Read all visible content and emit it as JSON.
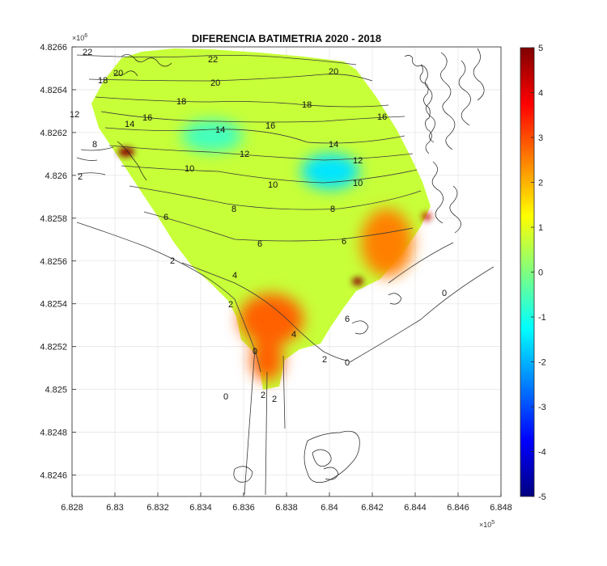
{
  "chart_data": {
    "type": "heatmap",
    "title": "DIFERENCIA BATIMETRIA 2020 - 2018",
    "xlabel": "",
    "ylabel": "",
    "xlim": [
      6.828,
      6.848
    ],
    "ylim": [
      4.8245,
      4.8266
    ],
    "x_ticks": [
      "6.828",
      "6.83",
      "6.832",
      "6.834",
      "6.836",
      "6.838",
      "6.84",
      "6.842",
      "6.844",
      "6.846",
      "6.848"
    ],
    "y_ticks": [
      "4.8246",
      "4.8248",
      "4.825",
      "4.8252",
      "4.8254",
      "4.8256",
      "4.8258",
      "4.826",
      "4.8262",
      "4.8264",
      "4.8266"
    ],
    "x_multiplier": {
      "base": "×10",
      "exp": "5"
    },
    "y_multiplier": {
      "base": "×10",
      "exp": "6"
    },
    "grid": true,
    "colorbar": {
      "min": -5,
      "max": 5,
      "colormap": "jet",
      "ticks": [
        "5",
        "4",
        "3",
        "2",
        "1",
        "0",
        "-1",
        "-2",
        "-3",
        "-4",
        "-5"
      ]
    },
    "contour_labels": [
      "22",
      "20",
      "18",
      "16",
      "14",
      "12",
      "10",
      "8",
      "6",
      "4",
      "2",
      "0"
    ],
    "regions": [
      {
        "name": "general",
        "value": 0.7
      },
      {
        "name": "southwest-shoal",
        "value": 2.8
      },
      {
        "name": "east-bank",
        "value": 2.5
      },
      {
        "name": "center-hole",
        "value": -1.5
      },
      {
        "name": "west-hole",
        "value": -0.6
      }
    ]
  },
  "colors": {
    "background": "#ffffff",
    "grid": "#e6e6e6",
    "axis": "#262626",
    "contour": "#3a3a3a"
  }
}
